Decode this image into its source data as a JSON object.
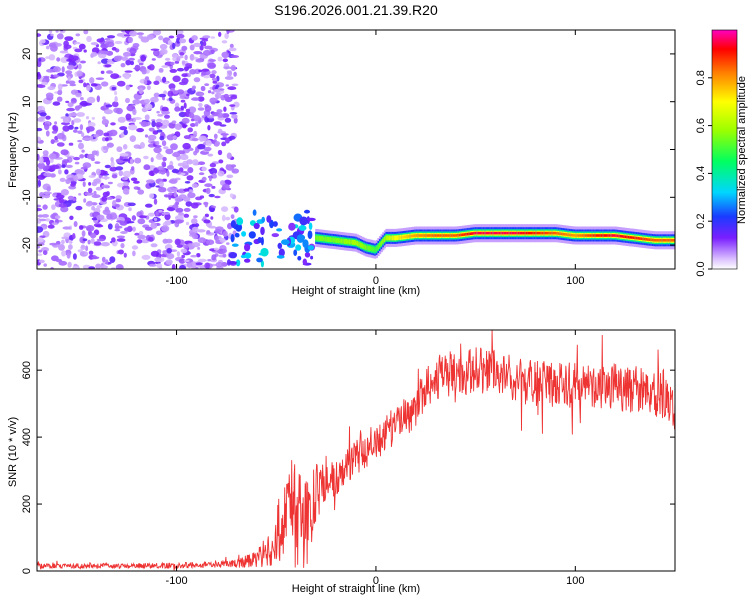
{
  "chart_data": [
    {
      "type": "heatmap",
      "title": "S196.2026.001.21.39.R20",
      "xlabel": "Height of straight line (km)",
      "ylabel": "Frequency (Hz)",
      "xlim": [
        -170,
        150
      ],
      "ylim": [
        -25,
        25
      ],
      "xticks": [
        -100,
        0,
        100
      ],
      "xtick_labels": [
        "-100",
        "0",
        "100"
      ],
      "yticks": [
        -20,
        -10,
        0,
        10,
        20
      ],
      "ytick_labels": [
        "-20",
        "-10",
        "0",
        "10",
        "20"
      ],
      "noise_region_x": [
        -170,
        -70
      ],
      "ridge": {
        "x": [
          -30,
          -20,
          -10,
          -5,
          0,
          5,
          10,
          20,
          30,
          40,
          50,
          60,
          70,
          80,
          90,
          100,
          110,
          120,
          130,
          140,
          150
        ],
        "frequency": [
          -18.5,
          -19,
          -19.5,
          -20.5,
          -21,
          -18.5,
          -18.5,
          -18,
          -18,
          -18,
          -17.5,
          -17.5,
          -17.5,
          -17.5,
          -17.5,
          -18,
          -18,
          -18,
          -18.5,
          -19,
          -19
        ],
        "amplitude": [
          0.55,
          0.55,
          0.6,
          0.55,
          0.5,
          0.6,
          0.7,
          0.8,
          0.85,
          0.85,
          0.95,
          0.95,
          0.95,
          0.9,
          0.85,
          0.8,
          0.9,
          0.95,
          0.9,
          0.85,
          0.85
        ]
      },
      "colorbar": {
        "label": "Normalized spectral amplitude",
        "range": [
          0,
          1
        ],
        "ticks": [
          0.0,
          0.2,
          0.4,
          0.6,
          0.8
        ],
        "tick_labels": [
          "0.0",
          "0.2",
          "0.4",
          "0.6",
          "0.8"
        ]
      }
    },
    {
      "type": "line",
      "xlabel": "Height of straight line (km)",
      "ylabel": "SNR (10 * v/v)",
      "xlim": [
        -170,
        150
      ],
      "ylim": [
        0,
        720
      ],
      "xticks": [
        -100,
        0,
        100
      ],
      "xtick_labels": [
        "-100",
        "0",
        "100"
      ],
      "yticks": [
        0,
        200,
        400,
        600
      ],
      "ytick_labels": [
        "0",
        "200",
        "400",
        "600"
      ],
      "color": "#ee3333",
      "series": [
        {
          "name": "SNR",
          "x": [
            -170,
            -150,
            -130,
            -110,
            -90,
            -70,
            -60,
            -55,
            -50,
            -45,
            -42,
            -40,
            -35,
            -30,
            -25,
            -20,
            -10,
            0,
            10,
            20,
            25,
            30,
            40,
            50,
            60,
            70,
            80,
            90,
            100,
            110,
            120,
            130,
            140,
            150
          ],
          "values": [
            15,
            15,
            15,
            16,
            18,
            22,
            35,
            60,
            110,
            170,
            200,
            160,
            130,
            230,
            260,
            280,
            340,
            390,
            430,
            490,
            540,
            580,
            590,
            600,
            590,
            575,
            560,
            560,
            555,
            555,
            550,
            545,
            530,
            500
          ],
          "noise_amplitude": [
            8,
            8,
            8,
            8,
            9,
            12,
            25,
            50,
            90,
            140,
            170,
            160,
            140,
            90,
            60,
            55,
            55,
            60,
            60,
            60,
            65,
            70,
            70,
            70,
            70,
            70,
            70,
            70,
            70,
            70,
            70,
            70,
            80,
            90
          ]
        }
      ]
    }
  ]
}
